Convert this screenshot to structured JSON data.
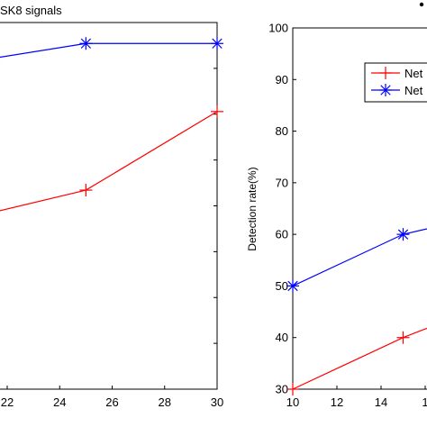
{
  "chart_data": [
    {
      "type": "line",
      "title": "SK8 signals",
      "xlabel": "",
      "ylabel": "",
      "x_ticks": [
        "22",
        "24",
        "26",
        "28",
        "30"
      ],
      "xlim": [
        20,
        30
      ],
      "series": [
        {
          "color": "#0000ff",
          "marker": "asterisk",
          "x": [
            20,
            25,
            30
          ],
          "y": [
            92,
            96,
            96
          ]
        },
        {
          "color": "#ff0000",
          "marker": "plus",
          "x": [
            20,
            25,
            30
          ],
          "y": [
            62,
            68,
            83
          ]
        }
      ],
      "grid": false
    },
    {
      "type": "line",
      "title": "",
      "xlabel": "",
      "ylabel": "Detection rate(%)",
      "x_ticks": [
        "10",
        "12",
        "14",
        "1"
      ],
      "y_ticks": [
        "30",
        "40",
        "50",
        "60",
        "70",
        "80",
        "90",
        "100"
      ],
      "ylim": [
        30,
        100
      ],
      "series": [
        {
          "name": "Net",
          "color": "#ff0000",
          "marker": "plus",
          "x": [
            10,
            15,
            18
          ],
          "y": [
            30,
            40,
            45
          ]
        },
        {
          "name": "Net",
          "color": "#0000ff",
          "marker": "asterisk",
          "x": [
            10,
            15,
            18
          ],
          "y": [
            50,
            60,
            63
          ]
        }
      ],
      "legend": "top-right",
      "grid": false
    }
  ]
}
